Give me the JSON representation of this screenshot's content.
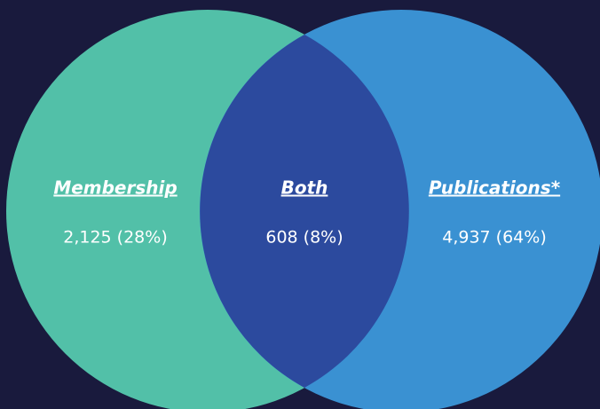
{
  "sets": [
    {
      "label": "Membership",
      "value": "2,125 (28%)"
    },
    {
      "label": "Both",
      "value": "608 (8%)"
    },
    {
      "label": "Publications*",
      "value": "4,937 (64%)"
    }
  ]
}
